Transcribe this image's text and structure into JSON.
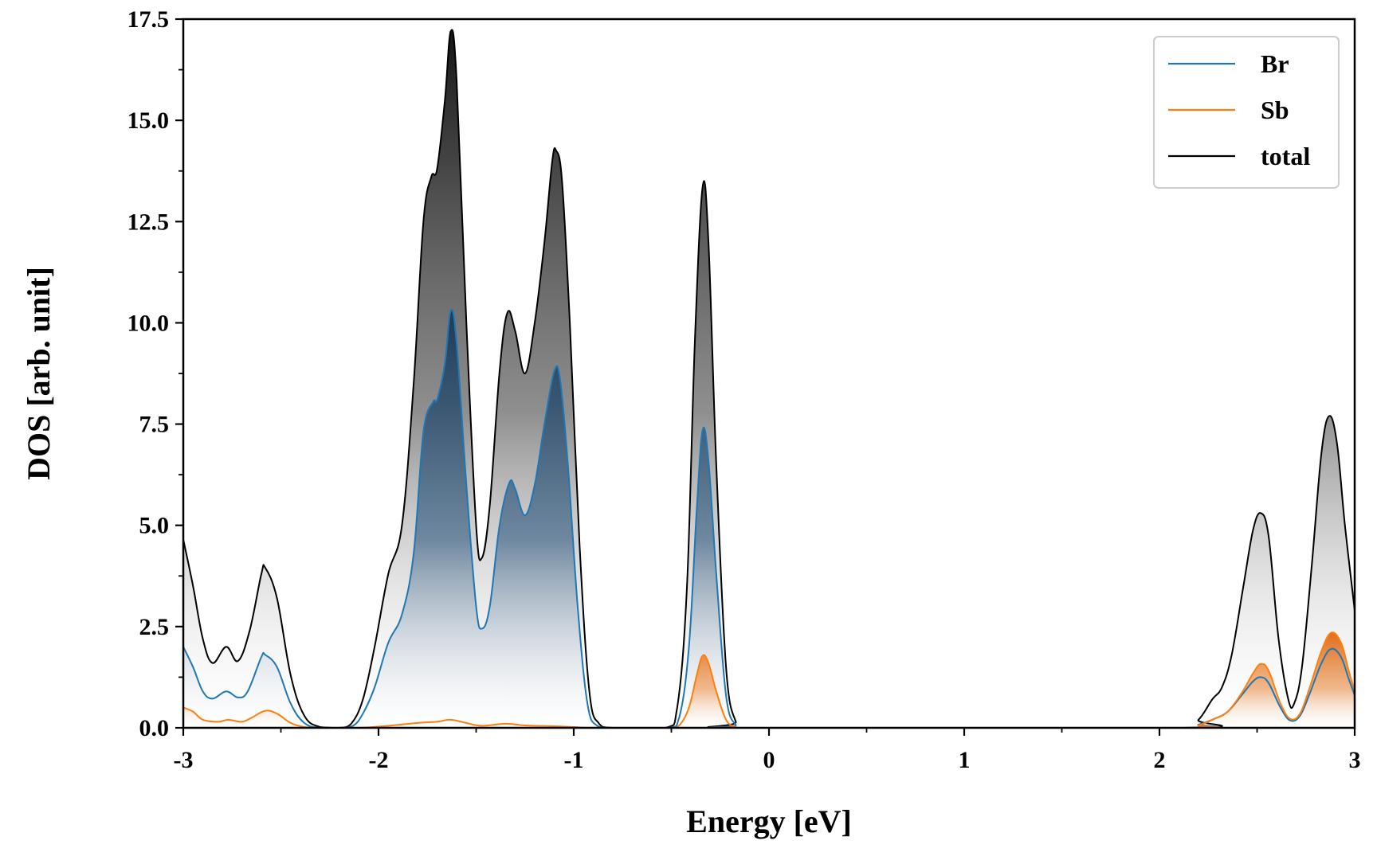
{
  "chart_data": {
    "type": "area",
    "title": "",
    "xlabel": "Energy [eV]",
    "ylabel": "DOS [arb. unit]",
    "xlim": [
      -3,
      3
    ],
    "ylim": [
      0,
      17.5
    ],
    "xticks": [
      -3,
      -2,
      -1,
      0,
      1,
      2,
      3
    ],
    "xtick_labels": [
      "-3",
      "-2",
      "-1",
      "0",
      "1",
      "2",
      "3"
    ],
    "yticks": [
      0,
      2.5,
      5,
      7.5,
      10,
      12.5,
      15,
      17.5
    ],
    "ytick_labels": [
      "0.0",
      "2.5",
      "5.0",
      "7.5",
      "10.0",
      "12.5",
      "15.0",
      "17.5"
    ],
    "grid": false,
    "legend_position": "top-right",
    "colors": {
      "Br": "#1f77b4",
      "Sb": "#ff7f0e",
      "total": "#000000",
      "Br_fill": "#1b3f5e",
      "Sb_fill": "#e8701a",
      "total_fill": "#1a1a1a"
    },
    "series": [
      {
        "name": "Br",
        "points": [
          [
            -3.0,
            2.0
          ],
          [
            -2.95,
            1.5
          ],
          [
            -2.9,
            0.9
          ],
          [
            -2.85,
            0.72
          ],
          [
            -2.78,
            0.9
          ],
          [
            -2.72,
            0.75
          ],
          [
            -2.67,
            0.9
          ],
          [
            -2.6,
            1.75
          ],
          [
            -2.58,
            1.8
          ],
          [
            -2.52,
            1.5
          ],
          [
            -2.45,
            0.6
          ],
          [
            -2.38,
            0.12
          ],
          [
            -2.3,
            0.0
          ],
          [
            -2.2,
            0.0
          ],
          [
            -2.13,
            0.05
          ],
          [
            -2.08,
            0.35
          ],
          [
            -2.02,
            1.0
          ],
          [
            -1.95,
            2.1
          ],
          [
            -1.88,
            2.8
          ],
          [
            -1.82,
            4.3
          ],
          [
            -1.77,
            7.3
          ],
          [
            -1.72,
            8.05
          ],
          [
            -1.7,
            8.1
          ],
          [
            -1.66,
            9.0
          ],
          [
            -1.63,
            10.3
          ],
          [
            -1.6,
            9.5
          ],
          [
            -1.55,
            6.0
          ],
          [
            -1.5,
            3.0
          ],
          [
            -1.47,
            2.45
          ],
          [
            -1.43,
            3.0
          ],
          [
            -1.38,
            5.0
          ],
          [
            -1.33,
            6.05
          ],
          [
            -1.3,
            5.9
          ],
          [
            -1.25,
            5.25
          ],
          [
            -1.2,
            6.0
          ],
          [
            -1.15,
            7.5
          ],
          [
            -1.1,
            8.8
          ],
          [
            -1.07,
            8.6
          ],
          [
            -1.03,
            6.5
          ],
          [
            -0.98,
            3.0
          ],
          [
            -0.93,
            0.6
          ],
          [
            -0.88,
            0.05
          ],
          [
            -0.8,
            0.0
          ],
          [
            -0.52,
            0.0
          ],
          [
            -0.46,
            0.25
          ],
          [
            -0.41,
            2.0
          ],
          [
            -0.37,
            5.4
          ],
          [
            -0.34,
            7.35
          ],
          [
            -0.31,
            6.6
          ],
          [
            -0.27,
            3.8
          ],
          [
            -0.22,
            0.8
          ],
          [
            -0.17,
            0.07
          ],
          [
            -0.12,
            0.0
          ],
          [
            2.1,
            0.0
          ],
          [
            2.2,
            0.08
          ],
          [
            2.28,
            0.22
          ],
          [
            2.35,
            0.4
          ],
          [
            2.42,
            0.8
          ],
          [
            2.48,
            1.15
          ],
          [
            2.52,
            1.25
          ],
          [
            2.56,
            1.1
          ],
          [
            2.62,
            0.5
          ],
          [
            2.67,
            0.18
          ],
          [
            2.72,
            0.3
          ],
          [
            2.77,
            0.85
          ],
          [
            2.83,
            1.6
          ],
          [
            2.88,
            1.95
          ],
          [
            2.93,
            1.75
          ],
          [
            2.97,
            1.2
          ],
          [
            3.0,
            0.8
          ]
        ]
      },
      {
        "name": "Sb",
        "points": [
          [
            -3.0,
            0.5
          ],
          [
            -2.95,
            0.4
          ],
          [
            -2.9,
            0.2
          ],
          [
            -2.82,
            0.15
          ],
          [
            -2.77,
            0.2
          ],
          [
            -2.7,
            0.15
          ],
          [
            -2.65,
            0.25
          ],
          [
            -2.58,
            0.42
          ],
          [
            -2.52,
            0.35
          ],
          [
            -2.45,
            0.12
          ],
          [
            -2.38,
            0.02
          ],
          [
            -2.3,
            0.0
          ],
          [
            -2.1,
            0.0
          ],
          [
            -1.95,
            0.05
          ],
          [
            -1.8,
            0.12
          ],
          [
            -1.7,
            0.15
          ],
          [
            -1.63,
            0.2
          ],
          [
            -1.55,
            0.12
          ],
          [
            -1.47,
            0.05
          ],
          [
            -1.35,
            0.1
          ],
          [
            -1.25,
            0.06
          ],
          [
            -1.1,
            0.04
          ],
          [
            -1.0,
            0.02
          ],
          [
            -0.9,
            0.0
          ],
          [
            -0.52,
            0.0
          ],
          [
            -0.46,
            0.06
          ],
          [
            -0.41,
            0.5
          ],
          [
            -0.37,
            1.3
          ],
          [
            -0.34,
            1.78
          ],
          [
            -0.31,
            1.6
          ],
          [
            -0.27,
            0.9
          ],
          [
            -0.22,
            0.2
          ],
          [
            -0.17,
            0.02
          ],
          [
            -0.12,
            0.0
          ],
          [
            2.1,
            0.0
          ],
          [
            2.2,
            0.06
          ],
          [
            2.28,
            0.22
          ],
          [
            2.35,
            0.4
          ],
          [
            2.42,
            0.85
          ],
          [
            2.48,
            1.35
          ],
          [
            2.52,
            1.58
          ],
          [
            2.56,
            1.4
          ],
          [
            2.62,
            0.6
          ],
          [
            2.67,
            0.22
          ],
          [
            2.72,
            0.35
          ],
          [
            2.77,
            1.0
          ],
          [
            2.83,
            1.9
          ],
          [
            2.88,
            2.35
          ],
          [
            2.93,
            2.1
          ],
          [
            2.97,
            1.4
          ],
          [
            3.0,
            0.9
          ]
        ]
      },
      {
        "name": "total",
        "points": [
          [
            -3.0,
            4.65
          ],
          [
            -2.95,
            3.5
          ],
          [
            -2.9,
            2.2
          ],
          [
            -2.85,
            1.6
          ],
          [
            -2.78,
            2.0
          ],
          [
            -2.72,
            1.65
          ],
          [
            -2.66,
            2.4
          ],
          [
            -2.6,
            3.8
          ],
          [
            -2.58,
            3.95
          ],
          [
            -2.52,
            3.2
          ],
          [
            -2.45,
            1.3
          ],
          [
            -2.38,
            0.3
          ],
          [
            -2.3,
            0.02
          ],
          [
            -2.2,
            0.0
          ],
          [
            -2.14,
            0.1
          ],
          [
            -2.08,
            0.7
          ],
          [
            -2.02,
            2.0
          ],
          [
            -1.95,
            3.8
          ],
          [
            -1.88,
            5.0
          ],
          [
            -1.82,
            8.5
          ],
          [
            -1.77,
            12.5
          ],
          [
            -1.73,
            13.6
          ],
          [
            -1.7,
            13.8
          ],
          [
            -1.66,
            15.5
          ],
          [
            -1.63,
            17.2
          ],
          [
            -1.6,
            16.0
          ],
          [
            -1.55,
            10.0
          ],
          [
            -1.5,
            5.0
          ],
          [
            -1.47,
            4.2
          ],
          [
            -1.43,
            5.5
          ],
          [
            -1.38,
            8.8
          ],
          [
            -1.34,
            10.25
          ],
          [
            -1.3,
            9.8
          ],
          [
            -1.25,
            8.75
          ],
          [
            -1.2,
            10.0
          ],
          [
            -1.15,
            12.0
          ],
          [
            -1.11,
            14.0
          ],
          [
            -1.09,
            14.25
          ],
          [
            -1.06,
            13.5
          ],
          [
            -1.02,
            10.0
          ],
          [
            -0.97,
            4.5
          ],
          [
            -0.92,
            0.9
          ],
          [
            -0.87,
            0.1
          ],
          [
            -0.8,
            0.0
          ],
          [
            -0.53,
            0.0
          ],
          [
            -0.47,
            0.5
          ],
          [
            -0.42,
            3.5
          ],
          [
            -0.38,
            9.5
          ],
          [
            -0.34,
            13.35
          ],
          [
            -0.31,
            12.0
          ],
          [
            -0.27,
            6.5
          ],
          [
            -0.22,
            1.5
          ],
          [
            -0.17,
            0.15
          ],
          [
            -0.12,
            0.0
          ],
          [
            2.12,
            0.0
          ],
          [
            2.2,
            0.2
          ],
          [
            2.27,
            0.7
          ],
          [
            2.32,
            1.0
          ],
          [
            2.37,
            1.8
          ],
          [
            2.43,
            3.5
          ],
          [
            2.48,
            4.9
          ],
          [
            2.52,
            5.3
          ],
          [
            2.56,
            4.7
          ],
          [
            2.61,
            2.2
          ],
          [
            2.66,
            0.7
          ],
          [
            2.69,
            0.6
          ],
          [
            2.73,
            1.5
          ],
          [
            2.78,
            4.0
          ],
          [
            2.83,
            6.8
          ],
          [
            2.87,
            7.7
          ],
          [
            2.91,
            7.0
          ],
          [
            2.95,
            5.0
          ],
          [
            3.0,
            2.9
          ]
        ]
      }
    ]
  }
}
